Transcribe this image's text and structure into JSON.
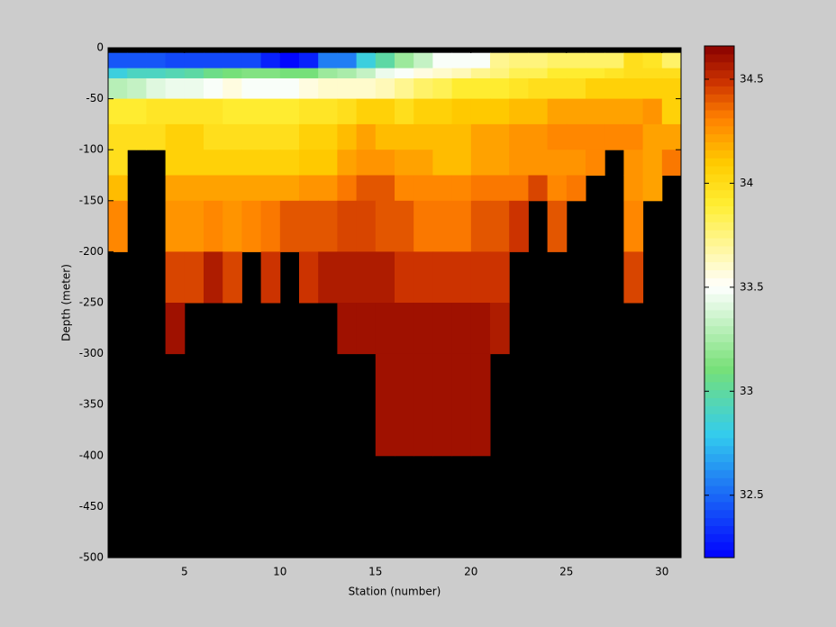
{
  "chart_data": {
    "type": "heatmap",
    "xlabel": "Station (number)",
    "ylabel": "Depth (meter)",
    "xlim": [
      1,
      31
    ],
    "ylim": [
      -500,
      0
    ],
    "xticks": [
      5,
      10,
      15,
      20,
      25,
      30
    ],
    "yticks": [
      0,
      -50,
      -100,
      -150,
      -200,
      -250,
      -300,
      -350,
      -400,
      -450,
      -500
    ],
    "x_edges": [
      1,
      2,
      3,
      4,
      5,
      6,
      7,
      8,
      9,
      10,
      11,
      12,
      13,
      14,
      15,
      16,
      17,
      18,
      19,
      20,
      21,
      22,
      23,
      24,
      25,
      26,
      27,
      28,
      29,
      30,
      31
    ],
    "y_edges": [
      -5,
      -20,
      -30,
      -50,
      -75,
      -100,
      -125,
      -150,
      -200,
      -250,
      -300,
      -400
    ],
    "z": [
      [
        32.45,
        32.45,
        32.45,
        32.4,
        32.4,
        32.4,
        32.4,
        32.4,
        32.3,
        32.2,
        32.3,
        32.55,
        32.55,
        32.85,
        33.0,
        33.2,
        33.35,
        33.5,
        33.5,
        33.5,
        33.7,
        33.75,
        33.75,
        33.8,
        33.8,
        33.8,
        33.8,
        34.0,
        33.95,
        33.8
      ],
      [
        32.85,
        32.9,
        32.9,
        32.95,
        33.0,
        33.05,
        33.1,
        33.15,
        33.15,
        33.1,
        33.1,
        33.2,
        33.25,
        33.35,
        33.45,
        33.5,
        33.55,
        33.6,
        33.65,
        33.7,
        33.75,
        33.85,
        33.85,
        33.9,
        33.9,
        33.9,
        33.95,
        34.0,
        34.0,
        34.0
      ],
      [
        33.3,
        33.35,
        33.4,
        33.45,
        33.45,
        33.5,
        33.55,
        33.5,
        33.5,
        33.5,
        33.55,
        33.6,
        33.6,
        33.6,
        33.65,
        33.7,
        33.8,
        33.85,
        33.9,
        33.9,
        33.9,
        33.95,
        34.0,
        34.0,
        34.0,
        34.05,
        34.05,
        34.05,
        34.05,
        34.05
      ],
      [
        33.9,
        33.9,
        33.95,
        33.95,
        33.95,
        33.95,
        33.9,
        33.9,
        33.9,
        33.9,
        33.95,
        33.95,
        34.0,
        34.05,
        34.05,
        34.0,
        34.05,
        34.05,
        34.1,
        34.1,
        34.1,
        34.15,
        34.15,
        34.2,
        34.2,
        34.2,
        34.2,
        34.2,
        34.25,
        34.05
      ],
      [
        34.0,
        34.0,
        34.0,
        34.05,
        34.05,
        34.0,
        34.0,
        34.0,
        34.0,
        34.0,
        34.05,
        34.05,
        34.15,
        34.2,
        34.15,
        34.15,
        34.15,
        34.15,
        34.15,
        34.2,
        34.2,
        34.25,
        34.25,
        34.3,
        34.3,
        34.3,
        34.3,
        34.3,
        34.2,
        34.2
      ],
      [
        34.0,
        null,
        null,
        34.05,
        34.05,
        34.05,
        34.05,
        34.05,
        34.05,
        34.05,
        34.1,
        34.1,
        34.2,
        34.25,
        34.25,
        34.2,
        34.2,
        34.15,
        34.15,
        34.2,
        34.2,
        34.25,
        34.25,
        34.25,
        34.25,
        34.3,
        null,
        34.25,
        34.2,
        34.35
      ],
      [
        34.15,
        null,
        null,
        34.2,
        34.2,
        34.2,
        34.2,
        34.2,
        34.2,
        34.2,
        34.25,
        34.25,
        34.35,
        34.4,
        34.4,
        34.3,
        34.3,
        34.3,
        34.3,
        34.35,
        34.35,
        34.35,
        34.45,
        34.3,
        34.35,
        null,
        null,
        34.25,
        34.2,
        null
      ],
      [
        34.3,
        null,
        null,
        34.25,
        34.25,
        34.3,
        34.25,
        34.3,
        34.35,
        34.4,
        34.4,
        34.4,
        34.45,
        34.45,
        34.4,
        34.4,
        34.35,
        34.35,
        34.35,
        34.4,
        34.4,
        34.5,
        null,
        34.4,
        null,
        null,
        null,
        34.3,
        null,
        null
      ],
      [
        null,
        null,
        null,
        34.45,
        34.45,
        34.55,
        34.45,
        null,
        34.5,
        null,
        34.5,
        34.55,
        34.55,
        34.55,
        34.55,
        34.5,
        34.5,
        34.5,
        34.5,
        34.5,
        34.5,
        null,
        null,
        null,
        null,
        null,
        null,
        34.45,
        null,
        null
      ],
      [
        null,
        null,
        null,
        34.6,
        null,
        null,
        null,
        null,
        null,
        null,
        null,
        null,
        34.6,
        34.6,
        34.6,
        34.6,
        34.6,
        34.6,
        34.6,
        34.6,
        34.55,
        null,
        null,
        null,
        null,
        null,
        null,
        null,
        null,
        null
      ],
      [
        null,
        null,
        null,
        null,
        null,
        null,
        null,
        null,
        null,
        null,
        null,
        null,
        null,
        null,
        34.62,
        34.62,
        34.62,
        34.62,
        34.62,
        34.62,
        null,
        null,
        null,
        null,
        null,
        null,
        null,
        null,
        null,
        null
      ]
    ],
    "nan_color": "#000000",
    "clim": [
      32.2,
      34.66
    ],
    "cticks": [
      32.5,
      33,
      33.5,
      34,
      34.5
    ],
    "colorscale": [
      [
        0,
        "#0000ff"
      ],
      [
        0.24,
        "#33ccee"
      ],
      [
        0.37,
        "#77e077"
      ],
      [
        0.53,
        "#ffffff"
      ],
      [
        0.69,
        "#ffee33"
      ],
      [
        0.77,
        "#ffcc00"
      ],
      [
        0.86,
        "#ff8000"
      ],
      [
        0.93,
        "#cc3300"
      ],
      [
        1,
        "#880000"
      ]
    ],
    "colorbar_levels": 64
  }
}
